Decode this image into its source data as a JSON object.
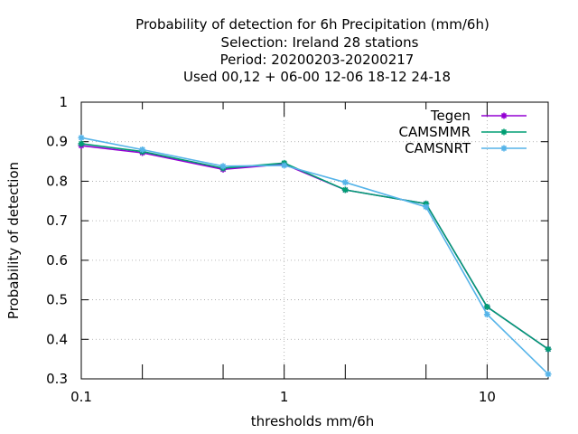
{
  "chart_data": {
    "type": "line",
    "title_lines": [
      "Probability of detection  for 6h Precipitation (mm/6h)",
      "Selection: Ireland      28 stations",
      "Period: 20200203-20200217",
      "Used  00,12  + 06-00 12-06 18-12 24-18"
    ],
    "xlabel": "thresholds mm/6h",
    "ylabel": "Probability of detection",
    "x_scale": "log",
    "xlim": [
      0.1,
      20
    ],
    "ylim": [
      0.3,
      1.0
    ],
    "x_ticks": [
      {
        "value": 0.1,
        "label": "0.1"
      },
      {
        "value": 1,
        "label": "1"
      },
      {
        "value": 10,
        "label": "10"
      }
    ],
    "x_minor_ticks": [
      0.2,
      0.5,
      2,
      5,
      20
    ],
    "y_ticks": [
      {
        "value": 0.3,
        "label": "0.3"
      },
      {
        "value": 0.4,
        "label": "0.4"
      },
      {
        "value": 0.5,
        "label": "0.5"
      },
      {
        "value": 0.6,
        "label": "0.6"
      },
      {
        "value": 0.7,
        "label": "0.7"
      },
      {
        "value": 0.8,
        "label": "0.8"
      },
      {
        "value": 0.9,
        "label": "0.9"
      },
      {
        "value": 1.0,
        "label": "1"
      }
    ],
    "grid": true,
    "legend_position": "top-right",
    "x": [
      0.1,
      0.2,
      0.5,
      1,
      2,
      5,
      10,
      20
    ],
    "series": [
      {
        "name": "Tegen",
        "color": "#9400d3",
        "values": [
          0.89,
          0.872,
          0.83,
          0.843,
          0.778,
          0.743,
          0.482,
          0.375
        ]
      },
      {
        "name": "CAMSMMR",
        "color": "#009e73",
        "values": [
          0.895,
          0.875,
          0.833,
          0.846,
          0.778,
          0.743,
          0.482,
          0.375
        ]
      },
      {
        "name": "CAMSNRT",
        "color": "#56b4e9",
        "values": [
          0.91,
          0.88,
          0.838,
          0.84,
          0.797,
          0.735,
          0.463,
          0.312
        ]
      }
    ]
  }
}
